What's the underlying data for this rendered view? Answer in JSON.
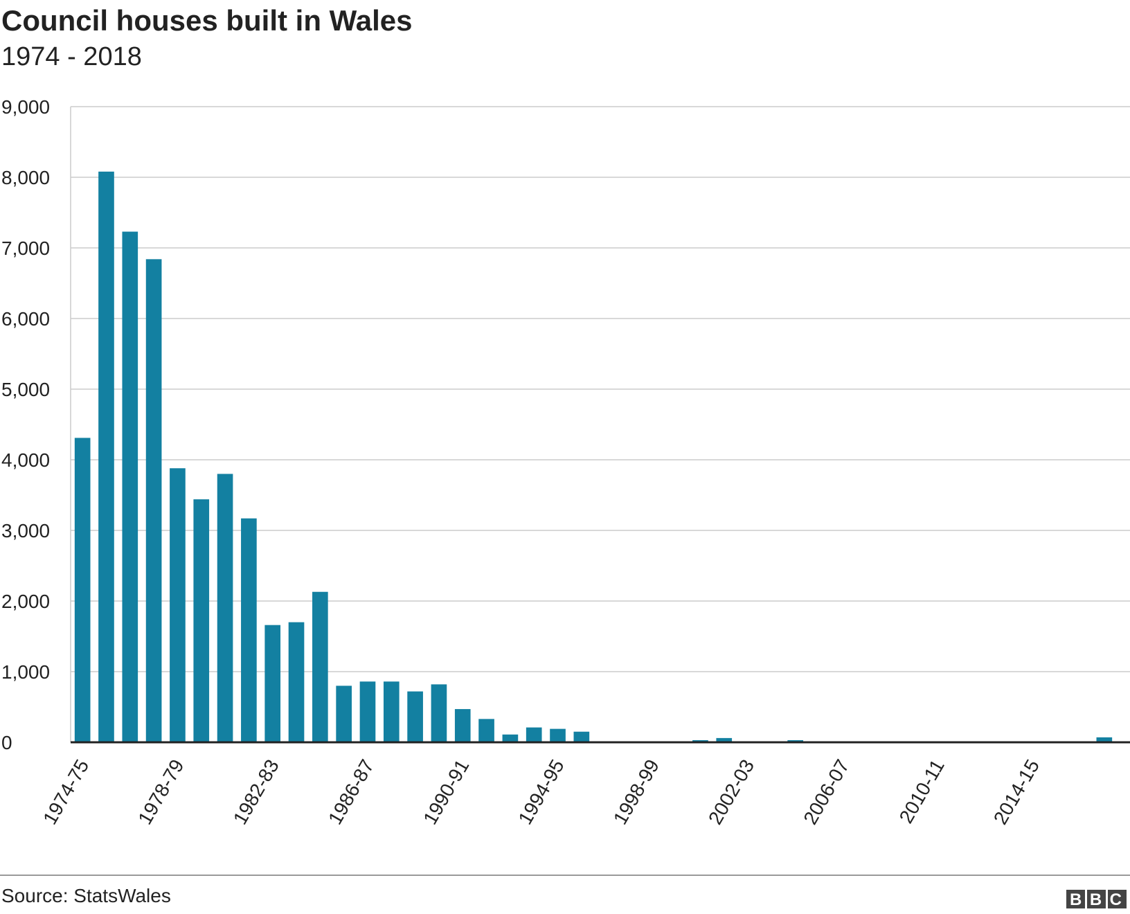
{
  "chart_data": {
    "type": "bar",
    "title": "Council houses built in Wales",
    "subtitle": "1974 - 2018",
    "categories": [
      "1974-75",
      null,
      null,
      null,
      "1978-79",
      null,
      null,
      null,
      "1982-83",
      null,
      null,
      null,
      "1986-87",
      null,
      null,
      null,
      "1990-91",
      null,
      null,
      null,
      "1994-95",
      null,
      null,
      null,
      "1998-99",
      null,
      null,
      null,
      "2002-03",
      null,
      null,
      null,
      "2006-07",
      null,
      null,
      null,
      "2010-11",
      null,
      null,
      null,
      "2014-15",
      null,
      null,
      null
    ],
    "values": [
      4310,
      8080,
      7230,
      6840,
      3880,
      3440,
      3800,
      3170,
      1660,
      1700,
      2130,
      800,
      860,
      860,
      720,
      820,
      470,
      330,
      110,
      210,
      190,
      150,
      10,
      0,
      10,
      0,
      30,
      60,
      0,
      10,
      30,
      10,
      0,
      0,
      0,
      0,
      0,
      0,
      0,
      10,
      0,
      0,
      0,
      70
    ],
    "color": "#1380a1",
    "ylim": [
      0,
      9000
    ],
    "yticks": [
      0,
      {
        "value": 1000,
        "label": "1,000"
      },
      {
        "value": 2000,
        "label": "2,000"
      },
      {
        "value": 3000,
        "label": "3,000"
      },
      {
        "value": 4000,
        "label": "4,000"
      },
      {
        "value": 5000,
        "label": "5,000"
      },
      {
        "value": 6000,
        "label": "6,000"
      },
      {
        "value": 7000,
        "label": "7,000"
      },
      {
        "value": 8000,
        "label": "8,000"
      },
      {
        "value": 9000,
        "label": "9,000"
      }
    ],
    "grid": true,
    "source": "Source: StatsWales",
    "logo": "BBC"
  }
}
